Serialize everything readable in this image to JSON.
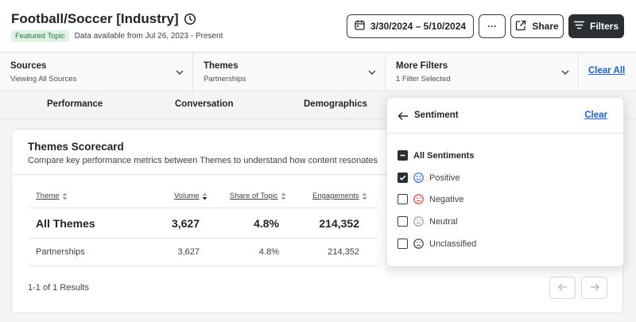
{
  "header": {
    "title": "Football/Soccer [Industry]",
    "badge": "Featured Topic",
    "availability": "Data available from Jul 26, 2023 - Present",
    "date_range": "3/30/2024 – 5/10/2024",
    "more_label": "···",
    "share_label": "Share",
    "filters_label": "Filters"
  },
  "filterbar": {
    "sources": {
      "title": "Sources",
      "value": "Viewing All Sources"
    },
    "themes": {
      "title": "Themes",
      "value": "Partnerships"
    },
    "more_filters": {
      "title": "More Filters",
      "value": "1 Filter Selected"
    },
    "clear_all": "Clear All"
  },
  "tabs": [
    "Performance",
    "Conversation",
    "Demographics"
  ],
  "scorecard": {
    "title": "Themes Scorecard",
    "description": "Compare key performance metrics between Themes to understand how content resonates",
    "columns": [
      "Theme",
      "Volume",
      "Share of Topic",
      "Engagements"
    ],
    "rows": [
      {
        "theme": "All Themes",
        "volume": "3,627",
        "share": "4.8%",
        "engagements": "214,352"
      },
      {
        "theme": "Partnerships",
        "volume": "3,627",
        "share": "4.8%",
        "engagements": "214,352"
      }
    ],
    "results": "1-1 of 1 Results"
  },
  "sentiment": {
    "title": "Sentiment",
    "clear": "Clear",
    "all_label": "All Sentiments",
    "options": [
      {
        "label": "Positive",
        "checked": true,
        "icon": "smile-icon",
        "color": "#2f6fd6"
      },
      {
        "label": "Negative",
        "checked": false,
        "icon": "frown-icon",
        "color": "#d64545"
      },
      {
        "label": "Neutral",
        "checked": false,
        "icon": "neutral-face-icon",
        "color": "#9a9ea5"
      },
      {
        "label": "Unclassified",
        "checked": false,
        "icon": "unclassified-face-icon",
        "color": "#3a3d42"
      }
    ]
  },
  "colors": {
    "accent": "#1d5fc4",
    "dark_button": "#2b2f33",
    "badge_bg": "#dff3e4"
  }
}
